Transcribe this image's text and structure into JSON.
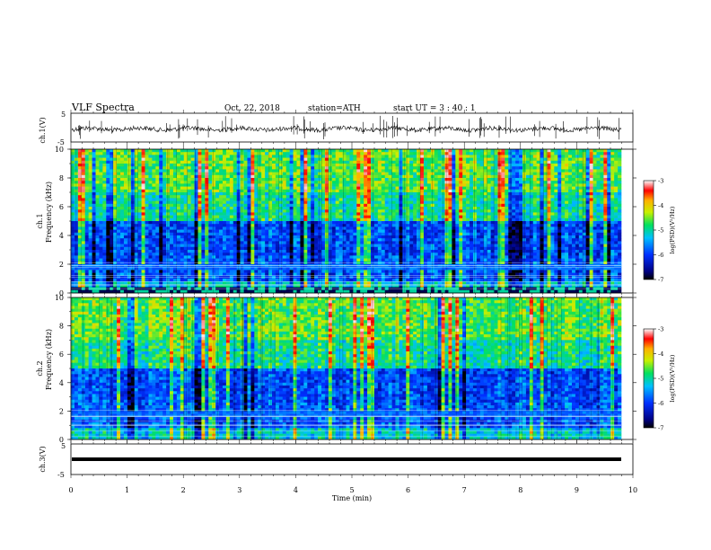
{
  "header": {
    "title": "VLF  Spectra",
    "date": "Oct. 22, 2018",
    "station": "station=ATH",
    "start": "start  UT  =    3  : 40 : 1"
  },
  "chart_data": [
    {
      "type": "line",
      "panel": "ch1-waveform",
      "ylabel": "ch.1(V)",
      "ylim": [
        -5,
        5
      ],
      "yticks": [
        "5",
        "-5"
      ],
      "xlim": [
        0,
        10
      ],
      "description_series": "noisy waveform centered near 0 V with sharp spikes"
    },
    {
      "type": "heatmap",
      "panel": "ch1-spectrogram",
      "ylabel": "ch.1\nFrequency (kHz)",
      "ylim": [
        0,
        10
      ],
      "yticks": [
        "0",
        "2",
        "4",
        "6",
        "8",
        "10"
      ],
      "xlim": [
        0,
        10
      ],
      "colorbar": {
        "label": "log(PSD)(V²/Hz)",
        "range": [
          -7,
          -3
        ],
        "ticks": [
          "-3",
          "-4",
          "-5",
          "-6",
          "-7"
        ]
      }
    },
    {
      "type": "heatmap",
      "panel": "ch2-spectrogram",
      "ylabel": "ch.2\nFrequency (kHz)",
      "ylim": [
        0,
        10
      ],
      "yticks": [
        "0",
        "2",
        "4",
        "6",
        "8",
        "10"
      ],
      "xlim": [
        0,
        10
      ],
      "colorbar": {
        "label": "log(PSD)(V²/Hz)",
        "range": [
          -7,
          -3
        ],
        "ticks": [
          "-3",
          "-4",
          "-5",
          "-6",
          "-7"
        ]
      }
    },
    {
      "type": "line",
      "panel": "ch3-waveform",
      "ylabel": "ch.3(V)",
      "ylim": [
        -5,
        5
      ],
      "yticks": [
        "5",
        "-5"
      ],
      "xlim": [
        0,
        10
      ],
      "xlabel": "Time  (min)",
      "xticks": [
        "0",
        "1",
        "2",
        "3",
        "4",
        "5",
        "6",
        "7",
        "8",
        "9",
        "10"
      ]
    }
  ],
  "labels": {
    "ch1_wave_y": "ch.1(V)",
    "ch1_spec_y1": "ch.1",
    "ch1_spec_y2": "Frequency  (kHz)",
    "ch2_spec_y1": "ch.2",
    "ch2_spec_y2": "Frequency  (kHz)",
    "ch3_wave_y": "ch.3(V)",
    "xlabel": "Time  (min)",
    "cbar_label": "log(PSD)(V²/Hz)"
  },
  "ticks": {
    "x": [
      "0",
      "1",
      "2",
      "3",
      "4",
      "5",
      "6",
      "7",
      "8",
      "9",
      "10"
    ],
    "freq": [
      "0",
      "2",
      "4",
      "6",
      "8",
      "10"
    ],
    "volt": [
      "5",
      "-5"
    ],
    "cbar": [
      "-3",
      "-4",
      "-5",
      "-6",
      "-7"
    ]
  }
}
